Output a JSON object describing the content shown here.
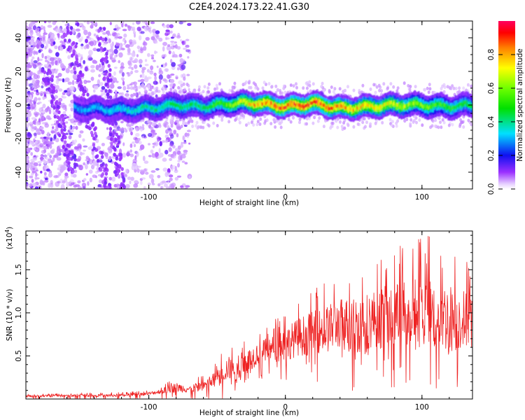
{
  "chart_data": [
    {
      "type": "heatmap",
      "title": "C2E4.2024.173.22.41.G30",
      "xlabel": "Height of straight line (km)",
      "ylabel": "Frequency (Hz)",
      "xlim": [
        -190,
        137
      ],
      "ylim": [
        -50,
        50
      ],
      "xticks": [
        -100,
        0,
        100
      ],
      "xtick_labels": [
        "-100",
        "0",
        "100"
      ],
      "yticks": [
        -40,
        -20,
        0,
        20,
        40
      ],
      "ytick_labels": [
        "-40",
        "-20",
        "0",
        "20",
        "40"
      ],
      "colorbar": {
        "label": "Normalized spectral amplitude",
        "range": [
          0,
          1
        ],
        "ticks": [
          0.0,
          0.2,
          0.4,
          0.6,
          0.8
        ],
        "tick_labels": [
          "0.0",
          "0.2",
          "0.4",
          "0.6",
          "0.8"
        ]
      },
      "ridge": {
        "description": "Doppler ridge near 0 Hz",
        "x": [
          -150,
          -120,
          -100,
          -80,
          -60,
          -40,
          -20,
          0,
          20,
          40,
          60,
          80,
          100,
          120,
          137
        ],
        "center_freq": [
          -2,
          -3,
          -2,
          0,
          -1,
          1,
          1,
          -1,
          1,
          -2,
          -1,
          0,
          0,
          -1,
          0
        ],
        "peak_amplitude": [
          0.3,
          0.35,
          0.4,
          0.45,
          0.45,
          0.6,
          0.85,
          0.9,
          0.9,
          0.85,
          0.75,
          0.7,
          0.6,
          0.5,
          0.45
        ]
      }
    },
    {
      "type": "line",
      "xlabel": "Height of straight line (km)",
      "ylabel": "SNR (10 * v/v)",
      "ylabel_scale": "(x10",
      "ylabel_scale_exp": "4",
      "ylabel_scale_close": ")",
      "xlim": [
        -190,
        137
      ],
      "ylim": [
        0,
        1.95
      ],
      "xticks": [
        -100,
        0,
        100
      ],
      "xtick_labels": [
        "-100",
        "0",
        "100"
      ],
      "yticks": [
        0.5,
        1.0,
        1.5
      ],
      "ytick_labels": [
        "0.5",
        "1.0",
        "1.5"
      ],
      "series": [
        {
          "name": "SNR",
          "color": "#ee2222",
          "envelope_x": [
            -190,
            -150,
            -120,
            -100,
            -90,
            -80,
            -70,
            -60,
            -50,
            -42,
            -35,
            -30,
            -20,
            -10,
            0,
            10,
            20,
            30,
            40,
            50,
            60,
            70,
            80,
            90,
            100,
            110,
            120,
            137
          ],
          "envelope_mean": [
            0.03,
            0.04,
            0.04,
            0.06,
            0.09,
            0.13,
            0.11,
            0.15,
            0.22,
            0.35,
            0.28,
            0.4,
            0.52,
            0.56,
            0.62,
            0.7,
            0.74,
            0.78,
            0.85,
            0.82,
            0.88,
            0.9,
            0.92,
            0.95,
            0.95,
            0.93,
            0.9,
            0.88
          ],
          "envelope_max": [
            0.06,
            0.07,
            0.08,
            0.1,
            0.16,
            0.26,
            0.2,
            0.3,
            0.45,
            0.66,
            0.55,
            0.7,
            0.82,
            0.9,
            1.05,
            1.2,
            1.3,
            1.4,
            1.5,
            1.6,
            1.62,
            1.7,
            1.78,
            1.82,
            1.95,
            1.85,
            1.8,
            1.6
          ]
        }
      ]
    }
  ]
}
